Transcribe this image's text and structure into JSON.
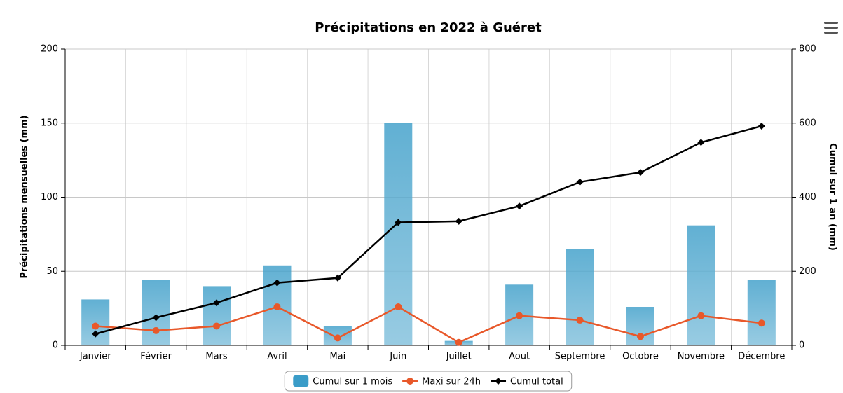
{
  "chart_data": {
    "type": "bar",
    "title": "Précipitations en 2022 à Guéret",
    "y_label": "Précipitations mensuelles (mm)",
    "y2_label": "Cumul sur 1 an (mm)",
    "categories": [
      "Janvier",
      "Février",
      "Mars",
      "Avril",
      "Mai",
      "Juin",
      "Juillet",
      "Aout",
      "Septembre",
      "Octobre",
      "Novembre",
      "Décembre"
    ],
    "series": [
      {
        "name": "Cumul sur 1 mois",
        "type": "bar",
        "color": "#3a9cc8",
        "values": [
          31,
          44,
          40,
          54,
          13,
          150,
          3,
          41,
          65,
          26,
          81,
          44
        ]
      },
      {
        "name": "Maxi sur 24h",
        "type": "line",
        "color": "#e8582a",
        "values": [
          13,
          10,
          13,
          26,
          5,
          26,
          2,
          20,
          17,
          6,
          20,
          15
        ]
      },
      {
        "name": "Cumul total",
        "type": "line",
        "color": "#000000",
        "axis": "y2",
        "values": [
          31,
          75,
          115,
          169,
          182,
          332,
          335,
          376,
          441,
          467,
          548,
          592
        ]
      }
    ],
    "ylim": [
      0,
      200
    ],
    "yticks": [
      0,
      50,
      100,
      150,
      200
    ],
    "y2lim": [
      0,
      800
    ],
    "y2ticks": [
      0,
      200,
      400,
      600,
      800
    ],
    "grid": true,
    "legend": "bottom"
  }
}
